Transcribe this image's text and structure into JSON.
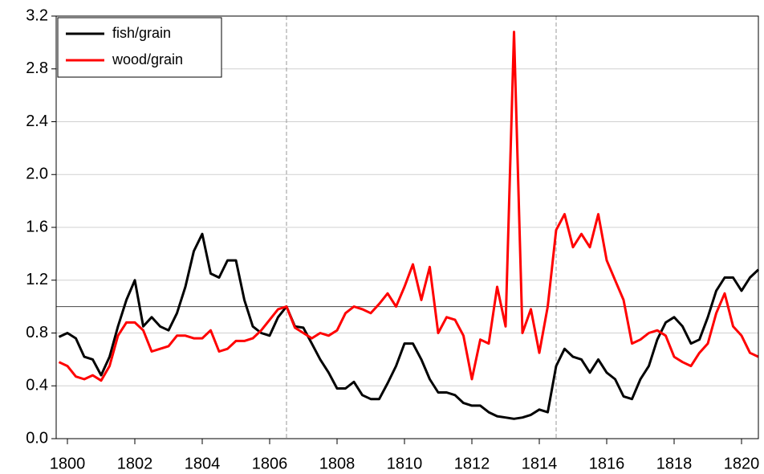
{
  "chart_data": {
    "type": "line",
    "x": [
      1799.75,
      1800,
      1800.25,
      1800.5,
      1800.75,
      1801,
      1801.25,
      1801.5,
      1801.75,
      1802,
      1802.25,
      1802.5,
      1802.75,
      1803,
      1803.25,
      1803.5,
      1803.75,
      1804,
      1804.25,
      1804.5,
      1804.75,
      1805,
      1805.25,
      1805.5,
      1805.75,
      1806,
      1806.25,
      1806.5,
      1806.75,
      1807,
      1807.25,
      1807.5,
      1807.75,
      1808,
      1808.25,
      1808.5,
      1808.75,
      1809,
      1809.25,
      1809.5,
      1809.75,
      1810,
      1810.25,
      1810.5,
      1810.75,
      1811,
      1811.25,
      1811.5,
      1811.75,
      1812,
      1812.25,
      1812.5,
      1812.75,
      1813,
      1813.25,
      1813.5,
      1813.75,
      1814,
      1814.25,
      1814.5,
      1814.75,
      1815,
      1815.25,
      1815.5,
      1815.75,
      1816,
      1816.25,
      1816.5,
      1816.75,
      1817,
      1817.25,
      1817.5,
      1817.75,
      1818,
      1818.25,
      1818.5,
      1818.75,
      1819,
      1819.25,
      1819.5,
      1819.75,
      1820,
      1820.25,
      1820.5
    ],
    "series": [
      {
        "name": "fish/grain",
        "color": "#000000",
        "values": [
          0.77,
          0.8,
          0.76,
          0.62,
          0.6,
          0.48,
          0.62,
          0.85,
          1.05,
          1.2,
          0.85,
          0.92,
          0.85,
          0.82,
          0.95,
          1.15,
          1.42,
          1.55,
          1.25,
          1.22,
          1.35,
          1.35,
          1.05,
          0.85,
          0.8,
          0.78,
          0.92,
          1.0,
          0.85,
          0.84,
          0.72,
          0.6,
          0.5,
          0.38,
          0.38,
          0.43,
          0.33,
          0.3,
          0.3,
          0.42,
          0.55,
          0.72,
          0.72,
          0.6,
          0.45,
          0.35,
          0.35,
          0.33,
          0.27,
          0.25,
          0.25,
          0.2,
          0.17,
          0.16,
          0.15,
          0.16,
          0.18,
          0.22,
          0.2,
          0.55,
          0.68,
          0.62,
          0.6,
          0.5,
          0.6,
          0.5,
          0.45,
          0.32,
          0.3,
          0.45,
          0.55,
          0.75,
          0.88,
          0.92,
          0.85,
          0.72,
          0.75,
          0.92,
          1.12,
          1.22,
          1.22,
          1.12,
          1.22,
          1.28
        ]
      },
      {
        "name": "wood/grain",
        "color": "#ff0000",
        "values": [
          0.58,
          0.55,
          0.47,
          0.45,
          0.48,
          0.44,
          0.55,
          0.78,
          0.88,
          0.88,
          0.82,
          0.66,
          0.68,
          0.7,
          0.78,
          0.78,
          0.76,
          0.76,
          0.82,
          0.66,
          0.68,
          0.74,
          0.74,
          0.76,
          0.82,
          0.9,
          0.98,
          1.0,
          0.84,
          0.8,
          0.76,
          0.8,
          0.78,
          0.82,
          0.95,
          1.0,
          0.98,
          0.95,
          1.02,
          1.1,
          1.0,
          1.15,
          1.32,
          1.05,
          1.3,
          0.8,
          0.92,
          0.9,
          0.78,
          0.45,
          0.75,
          0.72,
          1.15,
          0.85,
          3.08,
          0.8,
          0.98,
          0.65,
          1.0,
          1.58,
          1.7,
          1.45,
          1.55,
          1.45,
          1.7,
          1.35,
          1.2,
          1.05,
          0.72,
          0.75,
          0.8,
          0.82,
          0.78,
          0.62,
          0.58,
          0.55,
          0.65,
          0.72,
          0.95,
          1.1,
          0.85,
          0.78,
          0.65,
          0.62
        ]
      }
    ],
    "xlim": [
      1799.667,
      1820.5
    ],
    "xticks": [
      1800,
      1802,
      1804,
      1806,
      1808,
      1810,
      1812,
      1814,
      1816,
      1818,
      1820
    ],
    "ylim": [
      0,
      3.2
    ],
    "yticks": [
      {
        "value": 0,
        "label": "0.0"
      },
      0.4,
      0.8,
      1.2,
      1.6,
      {
        "value": 2,
        "label": "2.0"
      },
      2.4,
      2.8,
      3.2
    ],
    "hline": 1,
    "vlines": [
      1806.5,
      1814.5
    ],
    "grid": true,
    "legend": "upper left"
  }
}
